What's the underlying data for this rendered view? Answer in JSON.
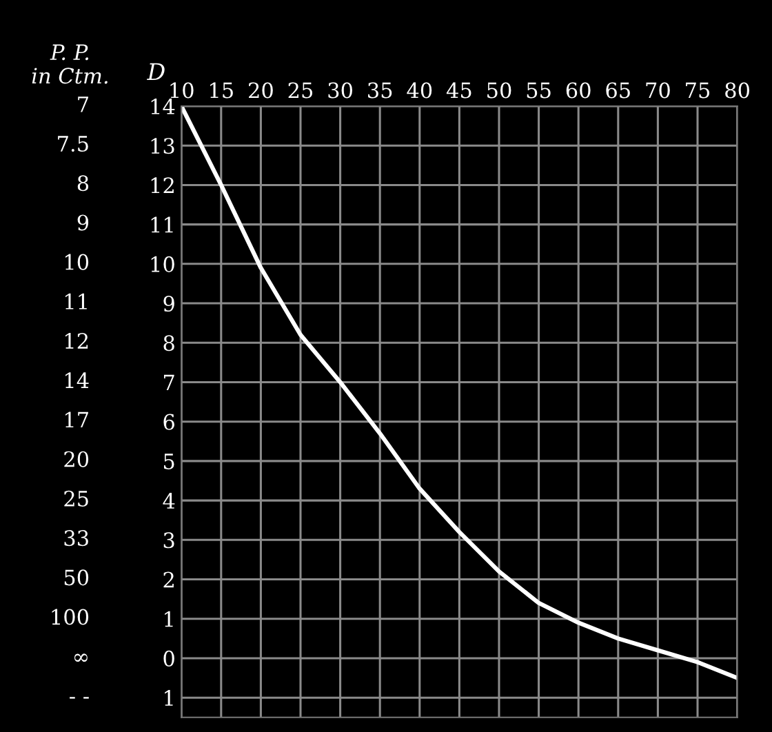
{
  "chart_data": {
    "type": "line",
    "x": [
      10,
      15,
      20,
      25,
      30,
      35,
      40,
      45,
      50,
      55,
      60,
      65,
      70,
      75,
      80
    ],
    "series": [
      {
        "color": "#ffffff",
        "values": [
          14,
          12,
          9.9,
          8.2,
          7,
          5.7,
          4.3,
          3.2,
          2.2,
          1.4,
          0.9,
          0.5,
          0.2,
          -0.1,
          -0.5
        ]
      }
    ],
    "xlim": [
      10,
      80
    ],
    "xticks": [
      10,
      15,
      20,
      25,
      30,
      35,
      40,
      45,
      50,
      55,
      60,
      65,
      70,
      75,
      80
    ],
    "ylim": [
      -1.5,
      14
    ],
    "yticks": [
      14,
      13,
      12,
      11,
      10,
      9,
      8,
      7,
      6,
      5,
      4,
      3,
      2,
      1,
      0,
      {
        "value": -1,
        "label": "1"
      }
    ],
    "ylabel": "D",
    "annotations": [
      "P. P.\nin Ctm.",
      "7",
      "7.5",
      "8",
      "9",
      "10",
      "11",
      "12",
      "14",
      "17",
      "20",
      "25",
      "33",
      "50",
      "100",
      "∞",
      "- -"
    ],
    "grid": true,
    "legend": false
  }
}
